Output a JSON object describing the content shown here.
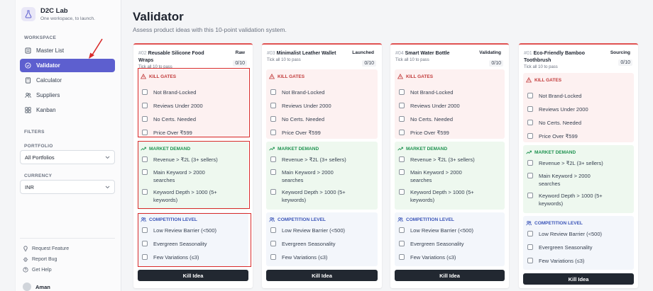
{
  "app": {
    "name": "D2C Lab",
    "tagline": "One workspace, to launch."
  },
  "sidebar": {
    "workspace_label": "WORKSPACE",
    "nav": [
      {
        "label": "Master List",
        "icon": "list-icon"
      },
      {
        "label": "Validator",
        "icon": "check-circle-icon",
        "active": true
      },
      {
        "label": "Calculator",
        "icon": "calculator-icon"
      },
      {
        "label": "Suppliers",
        "icon": "users-icon"
      },
      {
        "label": "Kanban",
        "icon": "kanban-icon"
      }
    ],
    "filters_label": "FILTERS",
    "portfolio_label": "PORTFOLIO",
    "portfolio_value": "All Portfolios",
    "currency_label": "CURRENCY",
    "currency_value": "INR",
    "footer": [
      "Request Feature",
      "Report Bug",
      "Get Help"
    ],
    "user": "Aman"
  },
  "page": {
    "title": "Validator",
    "subtitle": "Assess product ideas with this 10-point validation system."
  },
  "section_titles": {
    "kill": "KILL GATES",
    "market": "MARKET DEMAND",
    "comp": "COMPETITION LEVEL"
  },
  "checks": {
    "kill": [
      "Not Brand-Locked",
      "Reviews Under 2000",
      "No Certs. Needed",
      "Price Over ₹599"
    ],
    "market": [
      "Revenue > ₹2L (3+ sellers)",
      "Main Keyword > 2000 searches",
      "Keyword Depth > 1000 (5+ keywords)"
    ],
    "comp": [
      "Low Review Barrier (<500)",
      "Evergreen Seasonality",
      "Few Variations (≤3)"
    ]
  },
  "cards": [
    {
      "id": "#02",
      "name": "Reusable Silicone Food Wraps",
      "status": "Raw",
      "hint": "Tick all 10 to pass",
      "count": "0/10",
      "button": "Kill Idea"
    },
    {
      "id": "#03",
      "name": "Minimalist Leather Wallet",
      "status": "Launched",
      "hint": "Tick all 10 to pass",
      "count": "0/10",
      "button": "Kill Idea"
    },
    {
      "id": "#04",
      "name": "Smart Water Bottle",
      "status": "Validating",
      "hint": "Tick all 10 to pass",
      "count": "0/10",
      "button": "Kill Idea"
    },
    {
      "id": "#01",
      "name": "Eco-Friendly Bamboo Toothbrush",
      "status": "Sourcing",
      "hint": "Tick all 10 to pass",
      "count": "0/10",
      "button": "Kill Idea"
    }
  ],
  "colors": {
    "accent": "#5d5fcf",
    "kill": "#c23b3b",
    "market": "#1f9250",
    "competition": "#3b55b8",
    "annotation": "#d92b2b"
  }
}
